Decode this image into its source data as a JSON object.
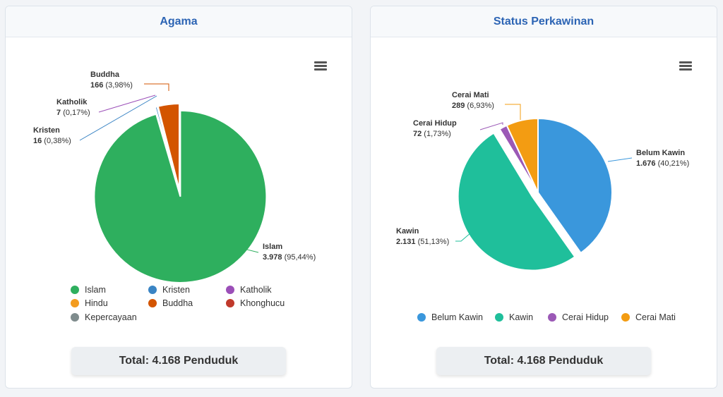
{
  "cards": [
    {
      "title": "Agama",
      "total": "Total: 4.168 Penduduk",
      "chart_data": {
        "type": "pie",
        "title": "Agama",
        "categories": [
          "Islam",
          "Kristen",
          "Katholik",
          "Hindu",
          "Buddha",
          "Khonghucu",
          "Kepercayaan"
        ],
        "values": [
          3978,
          16,
          7,
          0,
          166,
          0,
          0
        ],
        "labels": [
          {
            "category": "Buddha",
            "value": "166",
            "pct": "(3,98%)"
          },
          {
            "category": "Katholik",
            "value": "7",
            "pct": "(0,17%)"
          },
          {
            "category": "Kristen",
            "value": "16",
            "pct": "(0,38%)"
          },
          {
            "category": "Islam",
            "value": "3.978",
            "pct": "(95,44%)"
          }
        ],
        "colors": [
          "#2eaf5e",
          "#3a84c4",
          "#9b4fb8",
          "#f39c1f",
          "#d35400",
          "#c0392b",
          "#7f8c8d"
        ],
        "legend": "bottom"
      }
    },
    {
      "title": "Status Perkawinan",
      "total": "Total: 4.168 Penduduk",
      "chart_data": {
        "type": "pie",
        "title": "Status Perkawinan",
        "categories": [
          "Belum Kawin",
          "Kawin",
          "Cerai Hidup",
          "Cerai Mati"
        ],
        "values": [
          1676,
          2131,
          72,
          289
        ],
        "labels": [
          {
            "category": "Cerai Mati",
            "value": "289",
            "pct": "(6,93%)"
          },
          {
            "category": "Cerai Hidup",
            "value": "72",
            "pct": "(1,73%)"
          },
          {
            "category": "Belum Kawin",
            "value": "1.676",
            "pct": "(40,21%)"
          },
          {
            "category": "Kawin",
            "value": "2.131",
            "pct": "(51,13%)"
          }
        ],
        "colors": [
          "#3a97dc",
          "#1fbf9b",
          "#9b59b6",
          "#f39c12"
        ],
        "legend": "bottom"
      }
    }
  ]
}
